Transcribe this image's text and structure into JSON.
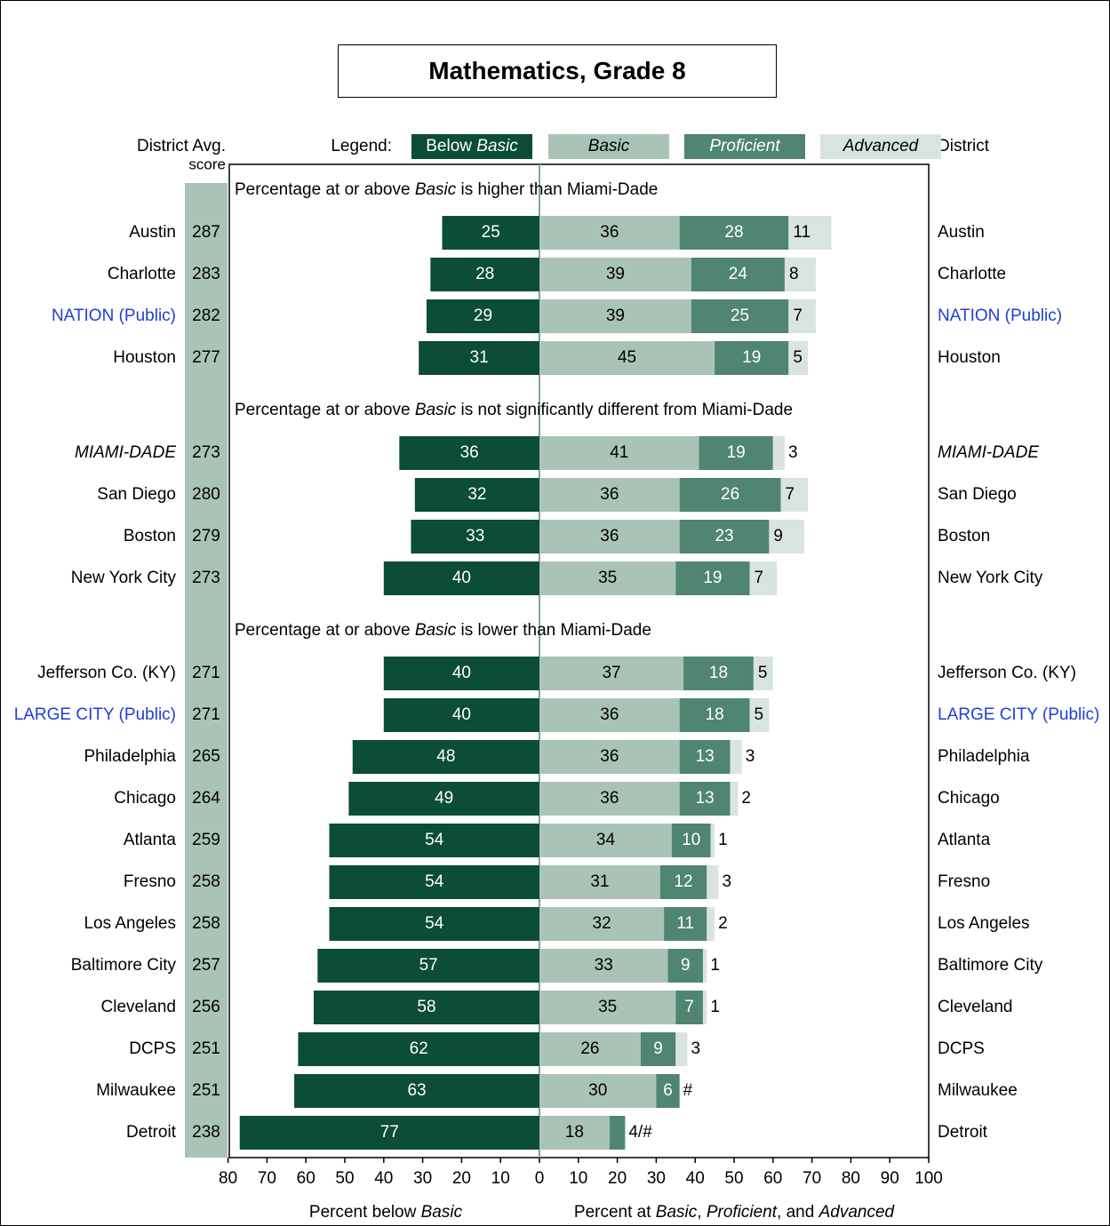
{
  "chart_data": {
    "type": "bar",
    "title": "Mathematics, Grade 8",
    "left_header": [
      "District Avg.",
      "score"
    ],
    "right_header": "District",
    "legend_label": "Legend:",
    "legend": [
      {
        "pre": "Below ",
        "italic": "Basic",
        "post": "",
        "color": "#0b4d36",
        "text_color": "#ffffff"
      },
      {
        "pre": "",
        "italic": "Basic",
        "post": "",
        "color": "#a9c4b7",
        "text_color": "#000000"
      },
      {
        "pre": "",
        "italic": "Proficient",
        "post": "",
        "color": "#4f8571",
        "text_color": "#ffffff"
      },
      {
        "pre": "",
        "italic": "Advanced",
        "post": "",
        "color": "#dae4df",
        "text_color": "#000000"
      }
    ],
    "colors": {
      "below_basic": "#0b4d36",
      "basic": "#a9c4b7",
      "proficient": "#4f8571",
      "advanced": "#dae4df",
      "score_column": "#a9c4b7",
      "highlight_text": "#1f3fd6"
    },
    "groups": [
      {
        "heading": {
          "pre": "Percentage at or above ",
          "italic": "Basic",
          "post": " is higher than Miami-Dade"
        },
        "rows": [
          {
            "district": "Austin",
            "score": "287",
            "below_basic": 25,
            "basic": 36,
            "proficient": 28,
            "advanced": 11,
            "below_label": "25",
            "basic_label": "36",
            "proficient_label": "28",
            "advanced_label": "11",
            "style": "normal"
          },
          {
            "district": "Charlotte",
            "score": "283",
            "below_basic": 28,
            "basic": 39,
            "proficient": 24,
            "advanced": 8,
            "below_label": "28",
            "basic_label": "39",
            "proficient_label": "24",
            "advanced_label": "8",
            "style": "normal"
          },
          {
            "district": "NATION (Public)",
            "score": "282",
            "below_basic": 29,
            "basic": 39,
            "proficient": 25,
            "advanced": 7,
            "below_label": "29",
            "basic_label": "39",
            "proficient_label": "25",
            "advanced_label": "7",
            "style": "highlight"
          },
          {
            "district": "Houston",
            "score": "277",
            "below_basic": 31,
            "basic": 45,
            "proficient": 19,
            "advanced": 5,
            "below_label": "31",
            "basic_label": "45",
            "proficient_label": "19",
            "advanced_label": "5",
            "style": "normal"
          }
        ]
      },
      {
        "heading": {
          "pre": "Percentage at or above ",
          "italic": "Basic",
          "post": " is not significantly different from Miami-Dade"
        },
        "rows": [
          {
            "district": "MIAMI-DADE",
            "score": "273",
            "below_basic": 36,
            "basic": 41,
            "proficient": 19,
            "advanced": 3,
            "below_label": "36",
            "basic_label": "41",
            "proficient_label": "19",
            "advanced_label": "3",
            "style": "italic"
          },
          {
            "district": "San Diego",
            "score": "280",
            "below_basic": 32,
            "basic": 36,
            "proficient": 26,
            "advanced": 7,
            "below_label": "32",
            "basic_label": "36",
            "proficient_label": "26",
            "advanced_label": "7",
            "style": "normal"
          },
          {
            "district": "Boston",
            "score": "279",
            "below_basic": 33,
            "basic": 36,
            "proficient": 23,
            "advanced": 9,
            "below_label": "33",
            "basic_label": "36",
            "proficient_label": "23",
            "advanced_label": "9",
            "style": "normal"
          },
          {
            "district": "New York City",
            "score": "273",
            "below_basic": 40,
            "basic": 35,
            "proficient": 19,
            "advanced": 7,
            "below_label": "40",
            "basic_label": "35",
            "proficient_label": "19",
            "advanced_label": "7",
            "style": "normal"
          }
        ]
      },
      {
        "heading": {
          "pre": "Percentage at or above ",
          "italic": "Basic",
          "post": " is lower than Miami-Dade"
        },
        "rows": [
          {
            "district": "Jefferson Co. (KY)",
            "score": "271",
            "below_basic": 40,
            "basic": 37,
            "proficient": 18,
            "advanced": 5,
            "below_label": "40",
            "basic_label": "37",
            "proficient_label": "18",
            "advanced_label": "5",
            "style": "normal"
          },
          {
            "district": "LARGE CITY (Public)",
            "score": "271",
            "below_basic": 40,
            "basic": 36,
            "proficient": 18,
            "advanced": 5,
            "below_label": "40",
            "basic_label": "36",
            "proficient_label": "18",
            "advanced_label": "5",
            "style": "highlight"
          },
          {
            "district": "Philadelphia",
            "score": "265",
            "below_basic": 48,
            "basic": 36,
            "proficient": 13,
            "advanced": 3,
            "below_label": "48",
            "basic_label": "36",
            "proficient_label": "13",
            "advanced_label": "3",
            "style": "normal"
          },
          {
            "district": "Chicago",
            "score": "264",
            "below_basic": 49,
            "basic": 36,
            "proficient": 13,
            "advanced": 2,
            "below_label": "49",
            "basic_label": "36",
            "proficient_label": "13",
            "advanced_label": "2",
            "style": "normal"
          },
          {
            "district": "Atlanta",
            "score": "259",
            "below_basic": 54,
            "basic": 34,
            "proficient": 10,
            "advanced": 1,
            "below_label": "54",
            "basic_label": "34",
            "proficient_label": "10",
            "advanced_label": "1",
            "style": "normal"
          },
          {
            "district": "Fresno",
            "score": "258",
            "below_basic": 54,
            "basic": 31,
            "proficient": 12,
            "advanced": 3,
            "below_label": "54",
            "basic_label": "31",
            "proficient_label": "12",
            "advanced_label": "3",
            "style": "normal"
          },
          {
            "district": "Los Angeles",
            "score": "258",
            "below_basic": 54,
            "basic": 32,
            "proficient": 11,
            "advanced": 2,
            "below_label": "54",
            "basic_label": "32",
            "proficient_label": "11",
            "advanced_label": "2",
            "style": "normal"
          },
          {
            "district": "Baltimore City",
            "score": "257",
            "below_basic": 57,
            "basic": 33,
            "proficient": 9,
            "advanced": 1,
            "below_label": "57",
            "basic_label": "33",
            "proficient_label": "9",
            "advanced_label": "1",
            "style": "normal"
          },
          {
            "district": "Cleveland",
            "score": "256",
            "below_basic": 58,
            "basic": 35,
            "proficient": 7,
            "advanced": 1,
            "below_label": "58",
            "basic_label": "35",
            "proficient_label": "7",
            "advanced_label": "1",
            "style": "normal"
          },
          {
            "district": "DCPS",
            "score": "251",
            "below_basic": 62,
            "basic": 26,
            "proficient": 9,
            "advanced": 3,
            "below_label": "62",
            "basic_label": "26",
            "proficient_label": "9",
            "advanced_label": "3",
            "style": "normal"
          },
          {
            "district": "Milwaukee",
            "score": "251",
            "below_basic": 63,
            "basic": 30,
            "proficient": 6,
            "advanced": 0,
            "below_label": "63",
            "basic_label": "30",
            "proficient_label": "6",
            "advanced_label": "#",
            "style": "normal"
          },
          {
            "district": "Detroit",
            "score": "238",
            "below_basic": 77,
            "basic": 18,
            "proficient": 4,
            "advanced": 0,
            "below_label": "77",
            "basic_label": "18",
            "proficient_label": "",
            "advanced_label": "4/#",
            "style": "normal"
          }
        ]
      }
    ],
    "x_axis": {
      "ticks_left": [
        80,
        70,
        60,
        50,
        40,
        30,
        20,
        10
      ],
      "ticks_right": [
        0,
        10,
        20,
        30,
        40,
        50,
        60,
        70,
        80,
        90,
        100
      ],
      "xlim_left": [
        80,
        0
      ],
      "xlim_right": [
        0,
        100
      ]
    },
    "xlabel_left": {
      "pre": "Percent below ",
      "italic": "Basic",
      "post": ""
    },
    "xlabel_right": [
      {
        "text": "Percent at ",
        "italic": false
      },
      {
        "text": "Basic",
        "italic": true
      },
      {
        "text": ", ",
        "italic": false
      },
      {
        "text": "Proficient",
        "italic": true
      },
      {
        "text": ", and ",
        "italic": false
      },
      {
        "text": "Advanced",
        "italic": true
      }
    ]
  }
}
